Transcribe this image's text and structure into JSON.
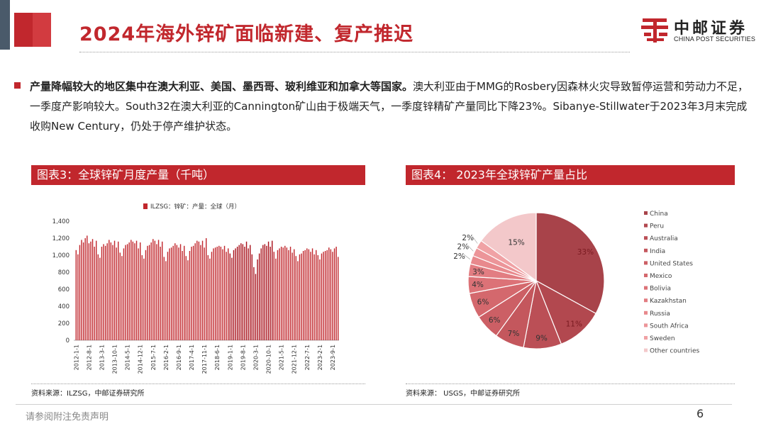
{
  "slide": {
    "title": "2024年海外锌矿面临新建、复产推迟",
    "logo": {
      "cn": "中邮证券",
      "en": "CHINA POST SECURITIES",
      "color": "#c1272d"
    },
    "bullet": {
      "bold": "产量降幅较大的地区集中在澳大利亚、美国、墨西哥、玻利维亚和加拿大等国家。",
      "rest": "澳大利亚由于MMG的Rosbery因森林火灾导致暂停运营和劳动力不足，一季度产影响较大。South32在澳大利亚的Cannington矿山由于极端天气，一季度锌精矿产量同比下降23%。Sibanye-Stillwater于2023年3月末完成收购New Century，仍处于停产维护状态。"
    },
    "disclaimer": "请参阅附注免责声明",
    "page_number": "6",
    "accent_color": "#c1272d"
  },
  "panels": {
    "left": {
      "header": "图表3：全球锌矿月度产量（千吨）",
      "source": "资料来源：ILZSG，中邮证券研究所"
    },
    "right": {
      "header": "图表4：   2023年全球锌矿产量占比",
      "source": "资料来源：   USGS，中邮证券研究所"
    }
  },
  "chart_data": [
    {
      "type": "bar",
      "legend": "ILZSG：锌矿：产量：全球（月）",
      "legend_position": "top",
      "ylim": [
        0,
        1400
      ],
      "yticks": [
        "0",
        "200",
        "400",
        "600",
        "800",
        "1,000",
        "1,200",
        "1,400"
      ],
      "xtick_labels": [
        "2012-1-1",
        "2012-8-1",
        "2013-3-1",
        "2013-10-1",
        "2014-5-1",
        "2014-12-1",
        "2015-7-1",
        "2016-2-1",
        "2016-9-1",
        "2017-4-1",
        "2017-11-1",
        "2018-6-1",
        "2019-1-1",
        "2019-8-1",
        "2020-3-1",
        "2020-10-1",
        "2021-5-1",
        "2021-12-1",
        "2022-7-1",
        "2023-2-1",
        "2023-9-1"
      ],
      "start_month": "2012-01",
      "end_month": "2023-12",
      "values": [
        1060,
        1010,
        1120,
        1180,
        1150,
        1200,
        1230,
        1140,
        1160,
        1190,
        1100,
        1170,
        1010,
        970,
        1100,
        1130,
        1110,
        1140,
        1180,
        1150,
        1120,
        1170,
        1090,
        1160,
        1030,
        990,
        1080,
        1120,
        1130,
        1150,
        1180,
        1160,
        1140,
        1170,
        1080,
        1150,
        1000,
        960,
        1060,
        1110,
        1120,
        1150,
        1190,
        1170,
        1130,
        1180,
        1100,
        1160,
        980,
        930,
        1040,
        1080,
        1090,
        1110,
        1140,
        1120,
        1090,
        1130,
        1050,
        1110,
        990,
        940,
        1050,
        1100,
        1110,
        1140,
        1170,
        1160,
        1120,
        1170,
        1090,
        1200,
        1000,
        960,
        1040,
        1080,
        1090,
        1100,
        1110,
        1100,
        1070,
        1110,
        1040,
        1080,
        1020,
        970,
        1060,
        1080,
        1100,
        1120,
        1140,
        1130,
        1100,
        1160,
        1080,
        1120,
        1010,
        860,
        780,
        950,
        1020,
        1080,
        1120,
        1130,
        1110,
        1160,
        1100,
        1170,
        1040,
        960,
        1060,
        1080,
        1100,
        1090,
        1110,
        1090,
        1060,
        1100,
        1030,
        1070,
        990,
        930,
        1010,
        1020,
        1050,
        1060,
        1080,
        1070,
        1040,
        1080,
        1010,
        1060,
        1000,
        950,
        1020,
        1040,
        1050,
        1060,
        1090,
        1070,
        1040,
        1080,
        1100,
        980
      ],
      "highlight_range": [
        "2019-01",
        "2020-12"
      ],
      "bar_color": "#c1272d",
      "highlight_color": "#a8101a"
    },
    {
      "type": "pie",
      "legend_position": "right",
      "labels": [
        "China",
        "Peru",
        "Australia",
        "India",
        "United States",
        "Mexico",
        "Bolivia",
        "Kazakhstan",
        "Russia",
        "South Africa",
        "Sweden",
        "Other countries"
      ],
      "values": [
        33,
        11,
        9,
        7,
        6,
        6,
        4,
        3,
        2,
        2,
        2,
        15
      ],
      "data_labels": [
        "33%",
        "11%",
        "9%",
        "7%",
        "6%",
        "6%",
        "4%",
        "3%",
        "2%",
        "2%",
        "2%",
        "15%"
      ],
      "colors": [
        "#a8434a",
        "#b2484f",
        "#bb4f56",
        "#c4575d",
        "#cc5f65",
        "#d4686d",
        "#dc7277",
        "#e27d82",
        "#e8898d",
        "#ec9599",
        "#f0a2a5",
        "#f3c8ca"
      ]
    }
  ]
}
